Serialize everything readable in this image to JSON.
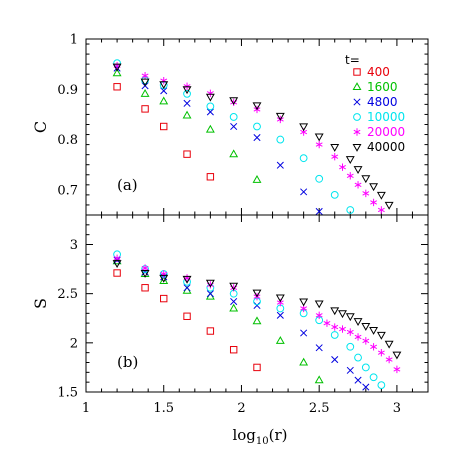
{
  "chart_data": [
    {
      "type": "scatter",
      "panel_label": "(a)",
      "xlabel": "log10(r)",
      "ylabel": "C",
      "xlim": [
        1,
        3.2
      ],
      "ylim": [
        0.65,
        1.0
      ],
      "x_ticks": [
        1,
        1.5,
        2,
        2.5,
        3
      ],
      "y_ticks": [
        0.7,
        0.8,
        0.9,
        1
      ],
      "y_tick_labels": [
        "0.7",
        "0.8",
        "0.9",
        "1"
      ],
      "grid": false,
      "legend": {
        "title": "t=",
        "placement": "top-right",
        "entries": [
          {
            "label": "400",
            "marker": "square",
            "color": "#e8000b"
          },
          {
            "label": "1600",
            "marker": "triangle-up",
            "color": "#00c000"
          },
          {
            "label": "4800",
            "marker": "x",
            "color": "#0000e0"
          },
          {
            "label": "10000",
            "marker": "circle",
            "color": "#00e5ee"
          },
          {
            "label": "20000",
            "marker": "asterisk",
            "color": "#ff00ff"
          },
          {
            "label": "40000",
            "marker": "triangle-down",
            "color": "#000000"
          }
        ]
      },
      "series": [
        {
          "label": "400",
          "x": [
            1.2,
            1.38,
            1.5,
            1.65,
            1.8
          ],
          "y": [
            0.905,
            0.861,
            0.826,
            0.771,
            0.726
          ]
        },
        {
          "label": "1600",
          "x": [
            1.2,
            1.38,
            1.5,
            1.65,
            1.8,
            1.95,
            2.1
          ],
          "y": [
            0.932,
            0.891,
            0.876,
            0.848,
            0.82,
            0.771,
            0.72
          ]
        },
        {
          "label": "4800",
          "x": [
            1.2,
            1.38,
            1.5,
            1.65,
            1.8,
            1.95,
            2.1,
            2.25,
            2.4,
            2.5
          ],
          "y": [
            0.942,
            0.907,
            0.897,
            0.872,
            0.855,
            0.826,
            0.804,
            0.749,
            0.696,
            0.657
          ]
        },
        {
          "label": "10000",
          "x": [
            1.2,
            1.38,
            1.5,
            1.65,
            1.8,
            1.95,
            2.1,
            2.25,
            2.4,
            2.5,
            2.6,
            2.7
          ],
          "y": [
            0.952,
            0.918,
            0.908,
            0.891,
            0.866,
            0.845,
            0.826,
            0.8,
            0.763,
            0.722,
            0.69,
            0.66
          ]
        },
        {
          "label": "20000",
          "x": [
            1.2,
            1.38,
            1.5,
            1.65,
            1.8,
            1.95,
            2.1,
            2.25,
            2.4,
            2.5,
            2.6,
            2.65,
            2.7,
            2.75,
            2.8,
            2.85,
            2.9
          ],
          "y": [
            0.947,
            0.927,
            0.917,
            0.906,
            0.892,
            0.874,
            0.86,
            0.84,
            0.815,
            0.79,
            0.766,
            0.745,
            0.728,
            0.71,
            0.693,
            0.675,
            0.66
          ]
        },
        {
          "label": "40000",
          "x": [
            1.2,
            1.38,
            1.5,
            1.65,
            1.8,
            1.95,
            2.1,
            2.25,
            2.4,
            2.5,
            2.6,
            2.7,
            2.75,
            2.8,
            2.85,
            2.9,
            2.95
          ],
          "y": [
            0.945,
            0.915,
            0.91,
            0.9,
            0.885,
            0.878,
            0.868,
            0.847,
            0.826,
            0.806,
            0.785,
            0.761,
            0.741,
            0.723,
            0.707,
            0.69,
            0.67
          ]
        }
      ]
    },
    {
      "type": "scatter",
      "panel_label": "(b)",
      "xlabel": "log10(r)",
      "ylabel": "S",
      "xlim": [
        1,
        3.2
      ],
      "ylim": [
        1.5,
        3.3
      ],
      "x_ticks": [
        1,
        1.5,
        2,
        2.5,
        3
      ],
      "y_ticks": [
        1.5,
        2,
        2.5,
        3
      ],
      "y_tick_labels": [
        "1.5",
        "2",
        "2.5",
        "3"
      ],
      "grid": false,
      "series": [
        {
          "label": "400",
          "x": [
            1.2,
            1.38,
            1.5,
            1.65,
            1.8,
            1.95,
            2.1
          ],
          "y": [
            2.71,
            2.56,
            2.45,
            2.27,
            2.12,
            1.93,
            1.75
          ]
        },
        {
          "label": "1600",
          "x": [
            1.2,
            1.38,
            1.5,
            1.65,
            1.8,
            1.95,
            2.1,
            2.25,
            2.4,
            2.5
          ],
          "y": [
            2.83,
            2.7,
            2.63,
            2.53,
            2.47,
            2.35,
            2.22,
            2.02,
            1.8,
            1.62
          ]
        },
        {
          "label": "4800",
          "x": [
            1.2,
            1.38,
            1.5,
            1.65,
            1.8,
            1.95,
            2.1,
            2.25,
            2.4,
            2.5,
            2.6,
            2.7,
            2.75,
            2.8
          ],
          "y": [
            2.84,
            2.72,
            2.67,
            2.56,
            2.5,
            2.42,
            2.38,
            2.28,
            2.1,
            1.95,
            1.83,
            1.72,
            1.62,
            1.55
          ]
        },
        {
          "label": "10000",
          "x": [
            1.2,
            1.38,
            1.5,
            1.65,
            1.8,
            1.95,
            2.1,
            2.25,
            2.4,
            2.5,
            2.6,
            2.7,
            2.75,
            2.8,
            2.85,
            2.9
          ],
          "y": [
            2.9,
            2.75,
            2.7,
            2.62,
            2.56,
            2.5,
            2.42,
            2.35,
            2.3,
            2.23,
            2.08,
            1.96,
            1.85,
            1.75,
            1.65,
            1.57
          ]
        },
        {
          "label": "20000",
          "x": [
            1.2,
            1.38,
            1.5,
            1.65,
            1.8,
            1.95,
            2.1,
            2.25,
            2.4,
            2.5,
            2.55,
            2.6,
            2.65,
            2.7,
            2.75,
            2.8,
            2.85,
            2.9,
            2.95,
            3.0
          ],
          "y": [
            2.86,
            2.76,
            2.7,
            2.66,
            2.59,
            2.56,
            2.47,
            2.41,
            2.35,
            2.28,
            2.2,
            2.16,
            2.14,
            2.11,
            2.06,
            2.02,
            1.96,
            1.9,
            1.83,
            1.73
          ]
        },
        {
          "label": "40000",
          "x": [
            1.2,
            1.38,
            1.5,
            1.65,
            1.8,
            1.95,
            2.1,
            2.25,
            2.4,
            2.5,
            2.6,
            2.65,
            2.7,
            2.75,
            2.8,
            2.85,
            2.9,
            2.95,
            3.0
          ],
          "y": [
            2.81,
            2.71,
            2.66,
            2.65,
            2.61,
            2.58,
            2.51,
            2.46,
            2.42,
            2.4,
            2.33,
            2.3,
            2.27,
            2.22,
            2.17,
            2.13,
            2.08,
            1.99,
            1.88
          ]
        }
      ]
    }
  ]
}
